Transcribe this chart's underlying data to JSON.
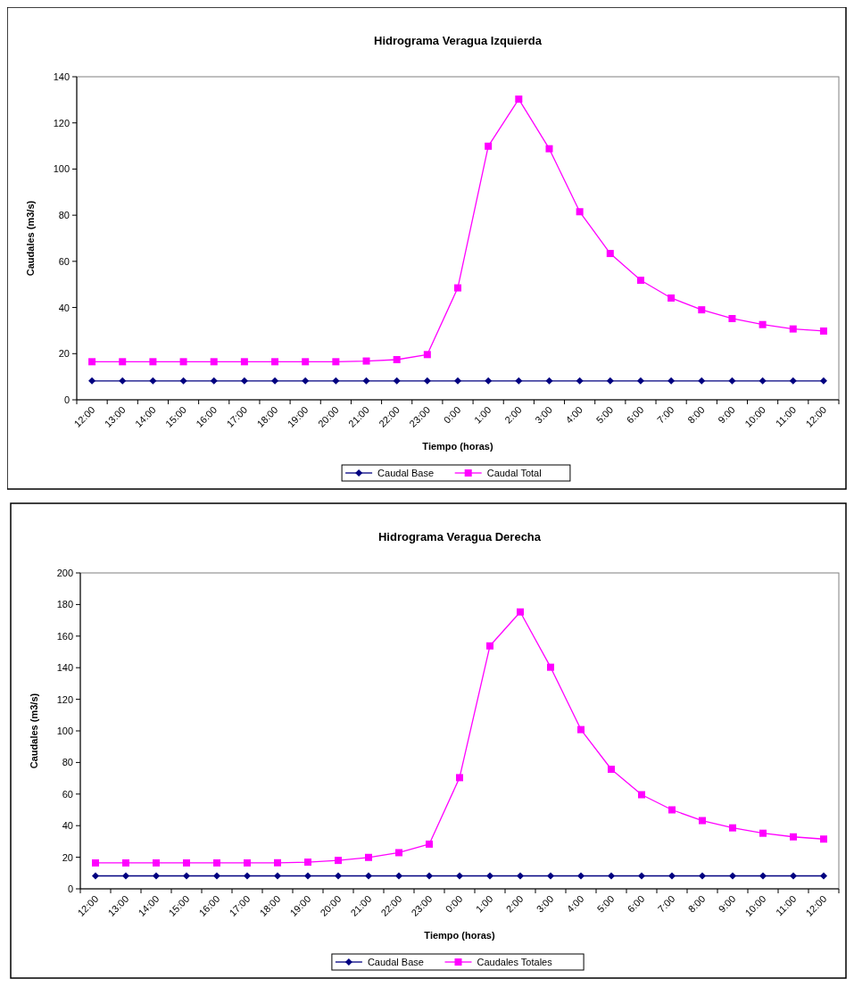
{
  "chart_data": [
    {
      "type": "line",
      "title": "Hidrograma Veragua Izquierda",
      "xlabel": "Tiempo (horas)",
      "ylabel": "Caudales (m3/s)",
      "categories": [
        "12:00",
        "13:00",
        "14:00",
        "15:00",
        "16:00",
        "17:00",
        "18:00",
        "19:00",
        "20:00",
        "21:00",
        "22:00",
        "23:00",
        "0:00",
        "1:00",
        "2:00",
        "3:00",
        "4:00",
        "5:00",
        "6:00",
        "7:00",
        "8:00",
        "9:00",
        "10:00",
        "11:00",
        "12:00"
      ],
      "series": [
        {
          "name": "Caudal Base",
          "color": "#000080",
          "marker": "diamond",
          "values": [
            8.2,
            8.2,
            8.2,
            8.2,
            8.2,
            8.2,
            8.2,
            8.2,
            8.2,
            8.2,
            8.2,
            8.2,
            8.2,
            8.2,
            8.2,
            8.2,
            8.2,
            8.2,
            8.2,
            8.2,
            8.2,
            8.2,
            8.2,
            8.2,
            8.2
          ]
        },
        {
          "name": "Caudal Total",
          "color": "#ff00ff",
          "marker": "square",
          "values": [
            16.5,
            16.5,
            16.5,
            16.5,
            16.5,
            16.5,
            16.5,
            16.5,
            16.5,
            16.8,
            17.4,
            19.6,
            48.5,
            109.9,
            130.3,
            108.8,
            81.5,
            63.4,
            51.8,
            44.1,
            39.0,
            35.2,
            32.6,
            30.7,
            29.8
          ]
        }
      ],
      "ylim": [
        0,
        140
      ],
      "yticks": [
        0,
        20,
        40,
        60,
        80,
        100,
        120,
        140
      ],
      "grid": false,
      "legend": "bottom"
    },
    {
      "type": "line",
      "title": "Hidrograma Veragua Derecha",
      "xlabel": "Tiempo (horas)",
      "ylabel": "Caudales (m3/s)",
      "categories": [
        "12:00",
        "13:00",
        "14:00",
        "15:00",
        "16:00",
        "17:00",
        "18:00",
        "19:00",
        "20:00",
        "21:00",
        "22:00",
        "23:00",
        "0:00",
        "1:00",
        "2:00",
        "3:00",
        "4:00",
        "5:00",
        "6:00",
        "7:00",
        "8:00",
        "9:00",
        "10:00",
        "11:00",
        "12:00"
      ],
      "series": [
        {
          "name": "Caudal Base",
          "color": "#000080",
          "marker": "diamond",
          "values": [
            8.2,
            8.2,
            8.2,
            8.2,
            8.2,
            8.2,
            8.2,
            8.2,
            8.2,
            8.2,
            8.2,
            8.2,
            8.2,
            8.2,
            8.2,
            8.2,
            8.2,
            8.2,
            8.2,
            8.2,
            8.2,
            8.2,
            8.2,
            8.2,
            8.2
          ]
        },
        {
          "name": "Caudales Totales",
          "color": "#ff00ff",
          "marker": "square",
          "values": [
            16.4,
            16.4,
            16.4,
            16.4,
            16.4,
            16.4,
            16.5,
            16.9,
            18.0,
            19.9,
            22.9,
            28.3,
            70.4,
            153.8,
            175.3,
            140.3,
            100.8,
            75.7,
            59.6,
            50.0,
            43.2,
            38.6,
            35.2,
            32.9,
            31.5
          ]
        }
      ],
      "ylim": [
        0,
        200
      ],
      "yticks": [
        0,
        20,
        40,
        60,
        80,
        100,
        120,
        140,
        160,
        180,
        200
      ],
      "grid": false,
      "legend": "bottom"
    }
  ]
}
